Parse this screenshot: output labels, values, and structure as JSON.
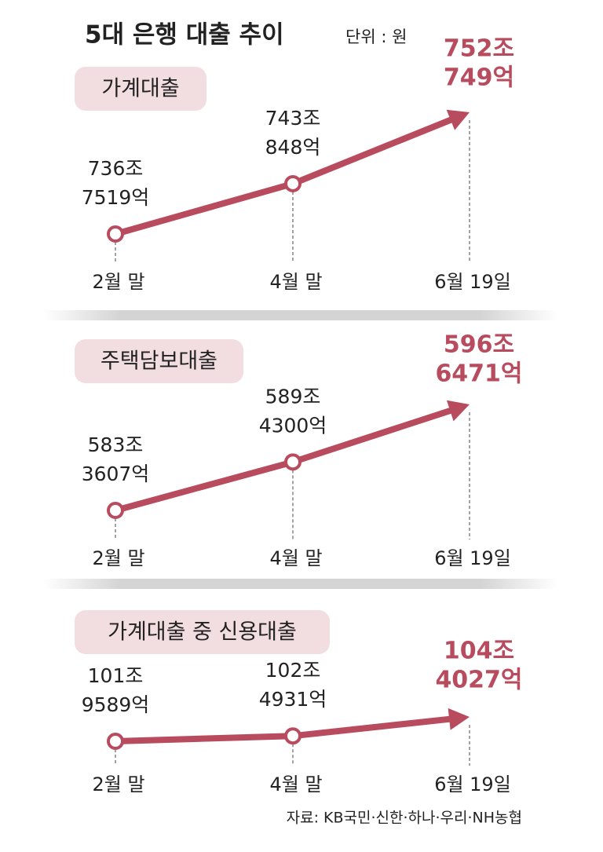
{
  "title": "5대 은행 대출 추이",
  "unit": "단위 : 원",
  "source": "자료: KB국민·신한·하나·우리·NH농협",
  "chart_data": [
    {
      "type": "line",
      "title": "가계대출",
      "color": "#b84c5e",
      "categories": [
        "2월 말",
        "4월 말",
        "6월 19일"
      ],
      "values": [
        7367519,
        7430848,
        7520749
      ],
      "value_labels": [
        [
          "736조",
          "7519억"
        ],
        [
          "743조",
          "848억"
        ],
        [
          "752조",
          "749억"
        ]
      ]
    },
    {
      "type": "line",
      "title": "주택담보대출",
      "color": "#b84c5e",
      "categories": [
        "2월 말",
        "4월 말",
        "6월 19일"
      ],
      "values": [
        5833607,
        5894300,
        5966471
      ],
      "value_labels": [
        [
          "583조",
          "3607억"
        ],
        [
          "589조",
          "4300억"
        ],
        [
          "596조",
          "6471억"
        ]
      ]
    },
    {
      "type": "line",
      "title": "가계대출 중 신용대출",
      "color": "#b84c5e",
      "categories": [
        "2월 말",
        "4월 말",
        "6월 19일"
      ],
      "values": [
        1019589,
        1024931,
        1044027
      ],
      "value_labels": [
        [
          "101조",
          "9589억"
        ],
        [
          "102조",
          "4931억"
        ],
        [
          "104조",
          "4027억"
        ]
      ]
    }
  ]
}
